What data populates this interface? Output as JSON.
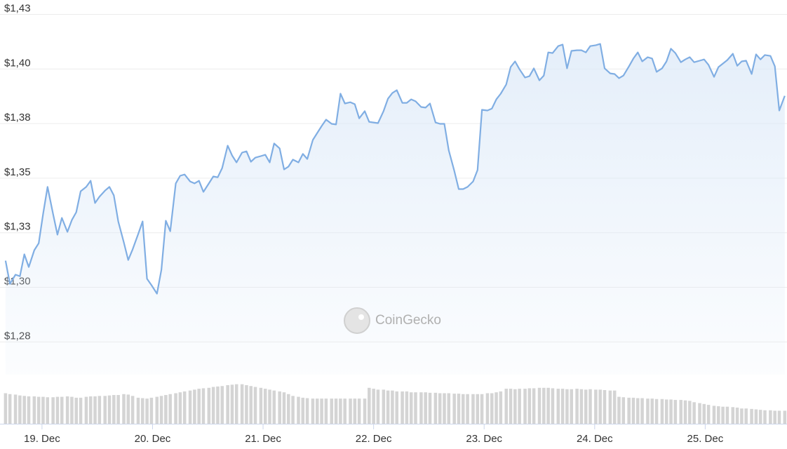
{
  "chart_data": {
    "type": "line",
    "watermark": "CoinGecko",
    "x": [
      18.67,
      18.71,
      18.76,
      18.8,
      18.84,
      18.88,
      18.93,
      18.97,
      19.01,
      19.05,
      19.1,
      19.14,
      19.18,
      19.23,
      19.27,
      19.31,
      19.35,
      19.4,
      19.44,
      19.48,
      19.52,
      19.57,
      19.61,
      19.65,
      19.69,
      19.74,
      19.78,
      19.82,
      19.87,
      19.91,
      19.95,
      19.99,
      20.04,
      20.08,
      20.12,
      20.16,
      20.21,
      20.25,
      20.29,
      20.34,
      20.38,
      20.42,
      20.46,
      20.51,
      20.55,
      20.59,
      20.63,
      20.68,
      20.72,
      20.76,
      20.81,
      20.85,
      20.89,
      20.93,
      20.98,
      21.02,
      21.06,
      21.1,
      21.15,
      21.19,
      21.23,
      21.27,
      21.32,
      21.36,
      21.4,
      21.45,
      21.49,
      21.53,
      21.57,
      21.62,
      21.66,
      21.7,
      21.74,
      21.79,
      21.83,
      21.87,
      21.92,
      21.96,
      22.0,
      22.04,
      22.09,
      22.13,
      22.17,
      22.21,
      22.26,
      22.3,
      22.34,
      22.38,
      22.43,
      22.47,
      22.51,
      22.56,
      22.6,
      22.64,
      22.68,
      22.73,
      22.77,
      22.81,
      22.85,
      22.9,
      22.94,
      22.98,
      23.03,
      23.07,
      23.11,
      23.15,
      23.2,
      23.24,
      23.28,
      23.32,
      23.37,
      23.41,
      23.45,
      23.5,
      23.54,
      23.58,
      23.62,
      23.67,
      23.71,
      23.75,
      23.79,
      23.84,
      23.88,
      23.92,
      23.96,
      24.01,
      24.05,
      24.09,
      24.14,
      24.18,
      24.22,
      24.26,
      24.31,
      24.35,
      24.39,
      24.43,
      24.48,
      24.52,
      24.56,
      24.61,
      24.65,
      24.69,
      24.73,
      24.78,
      24.82,
      24.86,
      24.9,
      24.95,
      24.99,
      25.03,
      25.08,
      25.12,
      25.16,
      25.2,
      25.25,
      25.29,
      25.33,
      25.37,
      25.42,
      25.46,
      25.5,
      25.54,
      25.59,
      25.63,
      25.67,
      25.72
    ],
    "series": [
      {
        "color": "#80aee3",
        "values": [
          1.3122,
          1.3016,
          1.3058,
          1.3051,
          1.3151,
          1.3093,
          1.317,
          1.3202,
          1.3337,
          1.346,
          1.3337,
          1.3241,
          1.3318,
          1.3254,
          1.3308,
          1.3344,
          1.344,
          1.346,
          1.3488,
          1.3386,
          1.3415,
          1.3443,
          1.346,
          1.3421,
          1.3302,
          1.3206,
          1.3125,
          1.3174,
          1.3244,
          1.3302,
          1.3039,
          1.301,
          1.2971,
          1.308,
          1.3305,
          1.3257,
          1.3476,
          1.3511,
          1.3517,
          1.3485,
          1.3476,
          1.3488,
          1.3437,
          1.3476,
          1.3508,
          1.3504,
          1.3546,
          1.3649,
          1.3604,
          1.3572,
          1.3617,
          1.3623,
          1.3575,
          1.3594,
          1.3601,
          1.3607,
          1.3572,
          1.3659,
          1.3636,
          1.354,
          1.3553,
          1.3585,
          1.3572,
          1.3611,
          1.3588,
          1.3675,
          1.3707,
          1.3739,
          1.3768,
          1.3749,
          1.3746,
          1.3887,
          1.3842,
          1.3848,
          1.3839,
          1.3774,
          1.3807,
          1.3758,
          1.3755,
          1.3752,
          1.3807,
          1.3864,
          1.389,
          1.3903,
          1.3845,
          1.3845,
          1.3861,
          1.3852,
          1.3826,
          1.3823,
          1.3842,
          1.3755,
          1.3749,
          1.3749,
          1.3627,
          1.3533,
          1.345,
          1.345,
          1.346,
          1.3485,
          1.3537,
          1.3813,
          1.381,
          1.3819,
          1.3861,
          1.3887,
          1.3929,
          1.4009,
          1.4035,
          1.3999,
          1.3961,
          1.3967,
          1.4003,
          1.3948,
          1.397,
          1.4076,
          1.4073,
          1.4105,
          1.4112,
          1.4003,
          1.4083,
          1.4086,
          1.4086,
          1.4076,
          1.4105,
          1.4109,
          1.4115,
          1.4003,
          1.398,
          1.3977,
          1.3958,
          1.397,
          1.4012,
          1.4048,
          1.4076,
          1.4035,
          1.4054,
          1.4048,
          1.3987,
          1.4003,
          1.4035,
          1.4093,
          1.4073,
          1.4031,
          1.4044,
          1.4054,
          1.4031,
          1.4038,
          1.4044,
          1.4019,
          1.3964,
          1.4009,
          1.4025,
          1.4041,
          1.407,
          1.4015,
          1.4035,
          1.4038,
          1.3977,
          1.4067,
          1.4044,
          1.4064,
          1.406,
          1.4012,
          1.381,
          1.3877
        ]
      },
      {
        "type": "bar",
        "axis": "y2",
        "color": "#d4d4d4",
        "values": [
          68,
          66,
          65,
          63,
          62,
          61,
          61,
          60,
          60,
          59,
          59,
          60,
          60,
          61,
          60,
          58,
          58,
          60,
          61,
          61,
          62,
          62,
          63,
          64,
          64,
          66,
          65,
          62,
          58,
          57,
          56,
          58,
          60,
          62,
          64,
          66,
          68,
          70,
          72,
          74,
          76,
          78,
          79,
          80,
          82,
          83,
          84,
          86,
          87,
          88,
          88,
          86,
          84,
          82,
          80,
          78,
          76,
          74,
          72,
          70,
          66,
          62,
          60,
          58,
          57,
          56,
          56,
          56,
          56,
          56,
          56,
          56,
          56,
          56,
          56,
          56,
          56,
          80,
          78,
          76,
          76,
          74,
          74,
          72,
          72,
          72,
          70,
          70,
          70,
          70,
          69,
          69,
          68,
          68,
          68,
          67,
          67,
          66,
          66,
          66,
          66,
          66,
          68,
          68,
          70,
          72,
          78,
          78,
          77,
          78,
          78,
          79,
          79,
          80,
          80,
          80,
          79,
          78,
          78,
          77,
          77,
          78,
          77,
          76,
          77,
          76,
          76,
          75,
          74,
          74,
          60,
          59,
          58,
          58,
          57,
          57,
          56,
          56,
          55,
          55,
          54,
          54,
          53,
          53,
          52,
          51,
          48,
          46,
          44,
          42,
          40,
          39,
          38,
          38,
          37,
          36,
          34,
          34,
          33,
          32,
          31,
          30,
          30,
          29,
          29,
          29
        ]
      }
    ],
    "xlim": [
      18.62,
      25.74
    ],
    "xticks": [
      {
        "value": 19,
        "label": "19. Dec"
      },
      {
        "value": 20,
        "label": "20. Dec"
      },
      {
        "value": 21,
        "label": "21. Dec"
      },
      {
        "value": 22,
        "label": "22. Dec"
      },
      {
        "value": 23,
        "label": "23. Dec"
      },
      {
        "value": 24,
        "label": "24. Dec"
      },
      {
        "value": 25,
        "label": "25. Dec"
      }
    ],
    "ylim": [
      1.26,
      1.43
    ],
    "yticks": [
      {
        "value": 1.275,
        "label": "$1,28"
      },
      {
        "value": 1.3,
        "label": "$1,30"
      },
      {
        "value": 1.325,
        "label": "$1,33"
      },
      {
        "value": 1.35,
        "label": "$1,35"
      },
      {
        "value": 1.375,
        "label": "$1,38"
      },
      {
        "value": 1.4,
        "label": "$1,40"
      },
      {
        "value": 1.425,
        "label": "$1,43"
      }
    ],
    "y2lim": [
      0,
      100
    ],
    "grid": true
  }
}
